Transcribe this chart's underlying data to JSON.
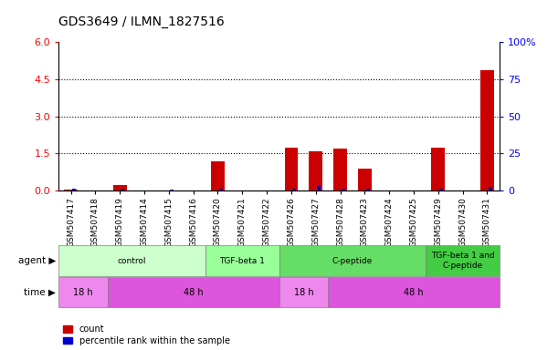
{
  "title": "GDS3649 / ILMN_1827516",
  "samples": [
    "GSM507417",
    "GSM507418",
    "GSM507419",
    "GSM507414",
    "GSM507415",
    "GSM507416",
    "GSM507420",
    "GSM507421",
    "GSM507422",
    "GSM507426",
    "GSM507427",
    "GSM507428",
    "GSM507423",
    "GSM507424",
    "GSM507425",
    "GSM507429",
    "GSM507430",
    "GSM507431"
  ],
  "count_values": [
    0.05,
    0.0,
    0.22,
    0.0,
    0.0,
    0.0,
    1.2,
    0.0,
    0.0,
    1.75,
    1.6,
    1.7,
    0.9,
    0.0,
    0.0,
    1.75,
    0.0,
    4.85
  ],
  "percentile_values": [
    0.08,
    0.0,
    0.08,
    0.0,
    0.04,
    0.0,
    0.1,
    0.0,
    0.0,
    0.1,
    0.2,
    0.1,
    0.1,
    0.0,
    0.0,
    0.1,
    0.0,
    0.15
  ],
  "ylim_left": [
    0,
    6
  ],
  "ylim_right": [
    0,
    100
  ],
  "yticks_left": [
    0,
    1.5,
    3.0,
    4.5,
    6
  ],
  "yticks_right": [
    0,
    25,
    50,
    75,
    100
  ],
  "dotted_lines": [
    1.5,
    3.0,
    4.5
  ],
  "bar_color_count": "#cc0000",
  "bar_color_percentile": "#0000cc",
  "agent_groups": [
    {
      "label": "control",
      "start": 0,
      "end": 6,
      "color": "#ccffcc"
    },
    {
      "label": "TGF-beta 1",
      "start": 6,
      "end": 9,
      "color": "#99ff99"
    },
    {
      "label": "C-peptide",
      "start": 9,
      "end": 15,
      "color": "#66dd66"
    },
    {
      "label": "TGF-beta 1 and\nC-peptide",
      "start": 15,
      "end": 18,
      "color": "#44cc44"
    }
  ],
  "time_groups": [
    {
      "label": "18 h",
      "start": 0,
      "end": 2,
      "color": "#ee88ee"
    },
    {
      "label": "48 h",
      "start": 2,
      "end": 9,
      "color": "#dd55dd"
    },
    {
      "label": "18 h",
      "start": 9,
      "end": 11,
      "color": "#ee88ee"
    },
    {
      "label": "48 h",
      "start": 11,
      "end": 18,
      "color": "#dd55dd"
    }
  ]
}
